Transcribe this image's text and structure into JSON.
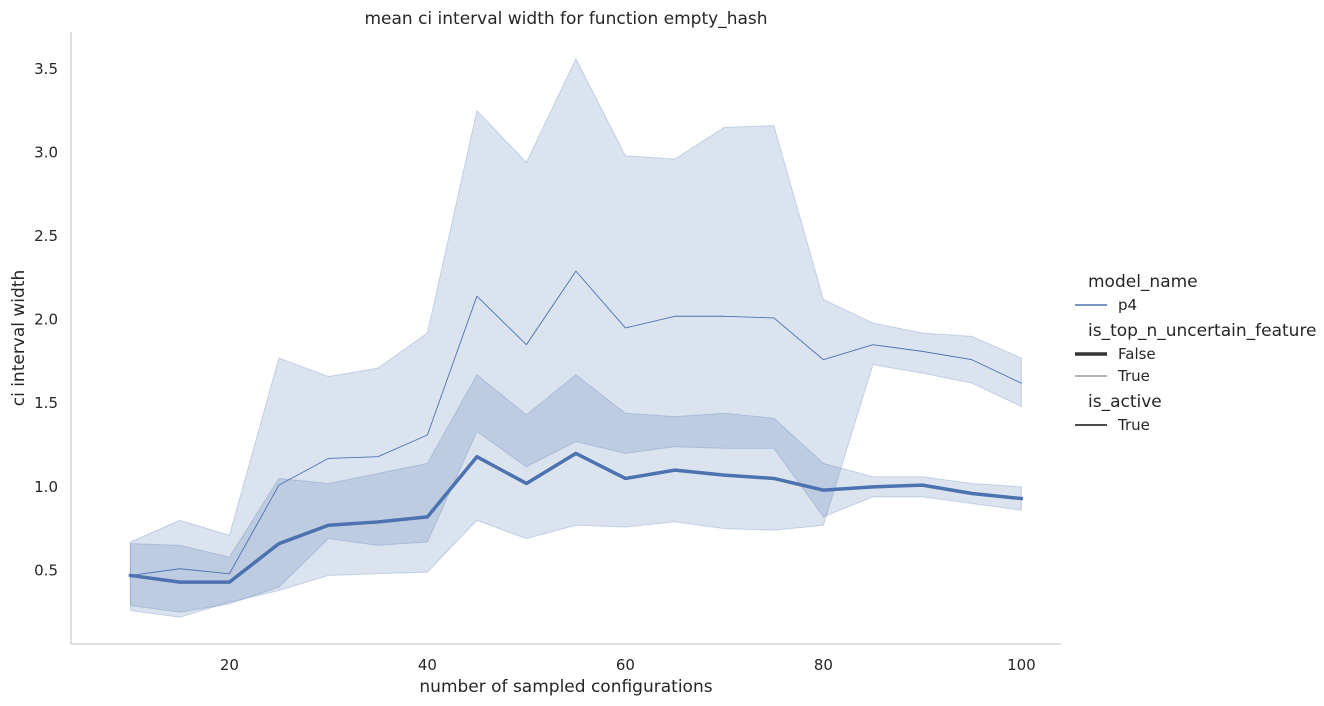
{
  "chart_data": {
    "type": "line",
    "title": "mean ci interval width for function empty_hash",
    "xlabel": "number of sampled configurations",
    "ylabel": "ci interval width",
    "xlim": [
      4,
      104
    ],
    "ylim": [
      0.06,
      3.72
    ],
    "xticks": [
      20,
      40,
      60,
      80,
      100
    ],
    "yticks": [
      0.5,
      1.0,
      1.5,
      2.0,
      2.5,
      3.0,
      3.5
    ],
    "ytick_labels": [
      "0.5",
      "1.0",
      "1.5",
      "2.0",
      "2.5",
      "3.0",
      "3.5"
    ],
    "grid": false,
    "color": "#4c72b0",
    "series": [
      {
        "name": "False",
        "x": [
          10,
          15,
          20,
          25,
          30,
          35,
          40,
          45,
          50,
          55,
          60,
          65,
          70,
          75,
          80,
          85,
          90,
          95,
          100
        ],
        "y": [
          0.47,
          0.43,
          0.43,
          0.66,
          0.77,
          0.79,
          0.82,
          1.18,
          1.02,
          1.2,
          1.05,
          1.1,
          1.07,
          1.05,
          0.98,
          1.0,
          1.01,
          0.96,
          0.93
        ],
        "ci_upper": [
          0.66,
          0.65,
          0.58,
          1.05,
          1.02,
          1.08,
          1.14,
          1.67,
          1.43,
          1.67,
          1.44,
          1.42,
          1.44,
          1.41,
          1.14,
          1.06,
          1.06,
          1.02,
          1.0
        ],
        "ci_lower": [
          0.29,
          0.25,
          0.3,
          0.4,
          0.69,
          0.65,
          0.67,
          1.33,
          1.12,
          1.27,
          1.2,
          1.24,
          1.23,
          1.23,
          0.82,
          0.94,
          0.94,
          0.9,
          0.86
        ]
      },
      {
        "name": "True",
        "x": [
          10,
          15,
          20,
          25,
          30,
          35,
          40,
          45,
          50,
          55,
          60,
          65,
          70,
          75,
          80,
          85,
          90,
          95,
          100
        ],
        "y": [
          0.47,
          0.51,
          0.48,
          1.01,
          1.17,
          1.18,
          1.31,
          2.14,
          1.85,
          2.29,
          1.95,
          2.02,
          2.02,
          2.01,
          1.76,
          1.85,
          1.81,
          1.76,
          1.62
        ],
        "ci_upper": [
          0.67,
          0.8,
          0.71,
          1.77,
          1.66,
          1.71,
          1.92,
          3.25,
          2.94,
          3.56,
          2.98,
          2.96,
          3.15,
          3.16,
          2.12,
          1.98,
          1.92,
          1.9,
          1.77
        ],
        "ci_lower": [
          0.26,
          0.22,
          0.31,
          0.38,
          0.47,
          0.48,
          0.49,
          0.8,
          0.69,
          0.77,
          0.76,
          0.79,
          0.75,
          0.74,
          0.77,
          1.73,
          1.68,
          1.62,
          1.48
        ]
      }
    ],
    "legend": {
      "placement": "right",
      "sections": [
        {
          "title": "model_name",
          "entries": [
            {
              "label": "p4",
              "style": "normal"
            }
          ]
        },
        {
          "title": "is_top_n_uncertain_feature",
          "entries": [
            {
              "label": "False",
              "style": "thick"
            },
            {
              "label": "True",
              "style": "thin"
            }
          ]
        },
        {
          "title": "is_active",
          "entries": [
            {
              "label": "True",
              "style": "solid"
            }
          ]
        }
      ]
    }
  }
}
